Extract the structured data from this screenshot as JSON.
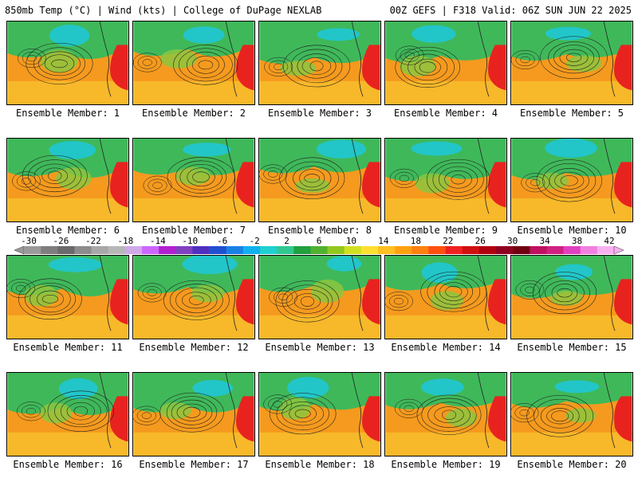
{
  "header": {
    "left": "850mb Temp (°C) | Wind (kts) | College of DuPage NEXLAB",
    "right": "00Z GEFS | F318 Valid: 06Z SUN JUN 22 2025"
  },
  "panel_label_prefix": "Ensemble Member: ",
  "members": [
    "1",
    "2",
    "3",
    "4",
    "5",
    "6",
    "7",
    "8",
    "9",
    "10",
    "11",
    "12",
    "13",
    "14",
    "15",
    "16",
    "17",
    "18",
    "19",
    "20"
  ],
  "colorbar": {
    "ticks": [
      "-30",
      "-26",
      "-22",
      "-18",
      "-14",
      "-10",
      "-6",
      "-2",
      "2",
      "6",
      "10",
      "14",
      "18",
      "22",
      "26",
      "30",
      "34",
      "38",
      "42"
    ],
    "colors": [
      "#9a9a9a",
      "#7e7e7e",
      "#6a6a6a",
      "#8c8c8c",
      "#a8a8a8",
      "#b7b7b7",
      "#d0a8e8",
      "#cc66ff",
      "#b020d0",
      "#8040c0",
      "#5030c0",
      "#2050d0",
      "#1a80e6",
      "#10b0f0",
      "#20d0d0",
      "#30c890",
      "#20a040",
      "#50b030",
      "#90c820",
      "#d0e020",
      "#ffe030",
      "#ffc020",
      "#ffa010",
      "#ff8010",
      "#ff5010",
      "#f02020",
      "#d01010",
      "#b00010",
      "#900020",
      "#700010",
      "#c01060",
      "#d02080",
      "#e040c0",
      "#f080e0",
      "#f8b0f0"
    ],
    "map_colors": {
      "ocean_warm": "#f59a1e",
      "ocean_hot": "#f7b82a",
      "cool": "#3fb85a",
      "cold": "#22c6c8",
      "mild": "#8cc63f",
      "hot_land": "#e8231f"
    }
  }
}
